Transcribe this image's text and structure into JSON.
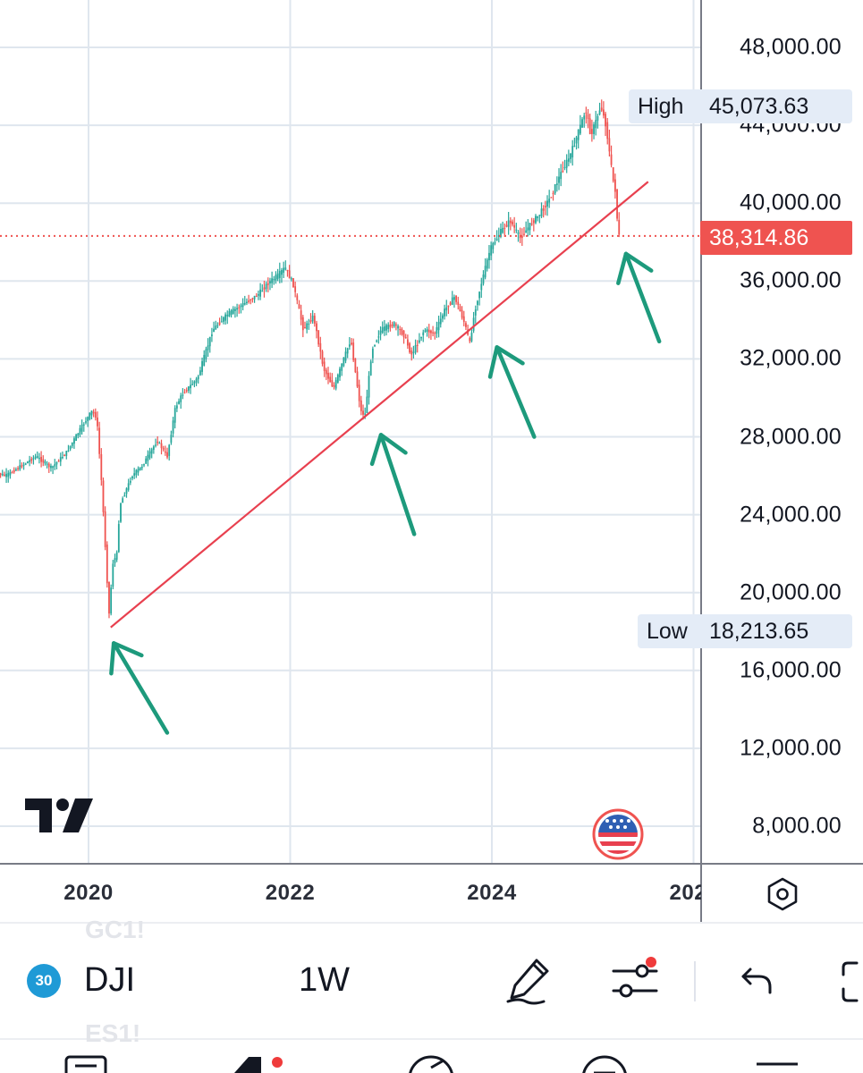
{
  "chart_data": {
    "type": "candlestick",
    "symbol": "DJI",
    "interval": "1W",
    "y_axis": {
      "ticks": [
        "48,000.00",
        "44,000.00",
        "40,000.00",
        "36,000.00",
        "32,000.00",
        "28,000.00",
        "24,000.00",
        "20,000.00",
        "16,000.00",
        "12,000.00",
        "8,000.00"
      ],
      "range": [
        6000,
        50000
      ]
    },
    "x_axis": {
      "ticks": [
        "2020",
        "2022",
        "2024",
        "202"
      ]
    },
    "high": {
      "label": "High",
      "value": "45,073.63"
    },
    "low": {
      "label": "Low",
      "value": "18,213.65"
    },
    "last_price": "38,314.86",
    "series_path": [
      [
        2019.05,
        26200
      ],
      [
        2019.2,
        26000
      ],
      [
        2019.35,
        26500
      ],
      [
        2019.5,
        27000
      ],
      [
        2019.65,
        26400
      ],
      [
        2019.8,
        27200
      ],
      [
        2019.95,
        28500
      ],
      [
        2020.05,
        29300
      ],
      [
        2020.1,
        29000
      ],
      [
        2020.15,
        25500
      ],
      [
        2020.2,
        21000
      ],
      [
        2020.22,
        18700
      ],
      [
        2020.26,
        21500
      ],
      [
        2020.3,
        22000
      ],
      [
        2020.33,
        24500
      ],
      [
        2020.45,
        26000
      ],
      [
        2020.55,
        26500
      ],
      [
        2020.7,
        27800
      ],
      [
        2020.8,
        27000
      ],
      [
        2020.88,
        29500
      ],
      [
        2020.95,
        30200
      ],
      [
        2021.1,
        31000
      ],
      [
        2021.25,
        33500
      ],
      [
        2021.4,
        34300
      ],
      [
        2021.55,
        34800
      ],
      [
        2021.7,
        35300
      ],
      [
        2021.8,
        35900
      ],
      [
        2021.9,
        36300
      ],
      [
        2021.97,
        36700
      ],
      [
        2022.05,
        35800
      ],
      [
        2022.15,
        33500
      ],
      [
        2022.25,
        34200
      ],
      [
        2022.35,
        31500
      ],
      [
        2022.45,
        30500
      ],
      [
        2022.55,
        32000
      ],
      [
        2022.62,
        33000
      ],
      [
        2022.72,
        29300
      ],
      [
        2022.76,
        29100
      ],
      [
        2022.83,
        32500
      ],
      [
        2022.92,
        33500
      ],
      [
        2023.05,
        33800
      ],
      [
        2023.15,
        33200
      ],
      [
        2023.22,
        32200
      ],
      [
        2023.35,
        33500
      ],
      [
        2023.45,
        33300
      ],
      [
        2023.55,
        34500
      ],
      [
        2023.65,
        35200
      ],
      [
        2023.75,
        33800
      ],
      [
        2023.8,
        32800
      ],
      [
        2023.85,
        34500
      ],
      [
        2023.92,
        36000
      ],
      [
        2024.0,
        37600
      ],
      [
        2024.1,
        38500
      ],
      [
        2024.2,
        39100
      ],
      [
        2024.3,
        38200
      ],
      [
        2024.4,
        38900
      ],
      [
        2024.5,
        39500
      ],
      [
        2024.6,
        40300
      ],
      [
        2024.7,
        41500
      ],
      [
        2024.8,
        42500
      ],
      [
        2024.9,
        44000
      ],
      [
        2024.95,
        44800
      ],
      [
        2025.0,
        43500
      ],
      [
        2025.05,
        44200
      ],
      [
        2025.1,
        45000
      ],
      [
        2025.15,
        44000
      ],
      [
        2025.2,
        42000
      ],
      [
        2025.22,
        41200
      ],
      [
        2025.25,
        40500
      ],
      [
        2025.27,
        38300
      ]
    ],
    "trendline": {
      "from": [
        2020.22,
        18213.65
      ],
      "to": [
        2025.55,
        41100
      ]
    },
    "arrows": [
      {
        "tip": [
          2020.25,
          17400
        ],
        "tail": [
          2020.78,
          12800
        ]
      },
      {
        "tip": [
          2022.9,
          28100
        ],
        "tail": [
          2023.23,
          23000
        ]
      },
      {
        "tip": [
          2024.05,
          32600
        ],
        "tail": [
          2024.42,
          28000
        ]
      },
      {
        "tip": [
          2025.33,
          37400
        ],
        "tail": [
          2025.66,
          32900
        ]
      }
    ]
  },
  "ghost_symbols": [
    "GC1!",
    "ES1!"
  ],
  "toolbar": {
    "badge": "30",
    "symbol": "DJI",
    "interval": "1W"
  },
  "icons": {
    "logo": "tradingview-logo-icon",
    "flag": "us-flag-icon",
    "settings": "settings-hexagon-icon",
    "draw": "pencil-draw-icon",
    "indicators": "sliders-icon",
    "undo": "undo-arrow-icon",
    "fullscreen": "fullscreen-bracket-icon"
  },
  "colors": {
    "up": "#26a69a",
    "down": "#ef5350",
    "trendline": "#e8404f",
    "arrow": "#1d9a7c",
    "grid": "#dfe6ee"
  }
}
